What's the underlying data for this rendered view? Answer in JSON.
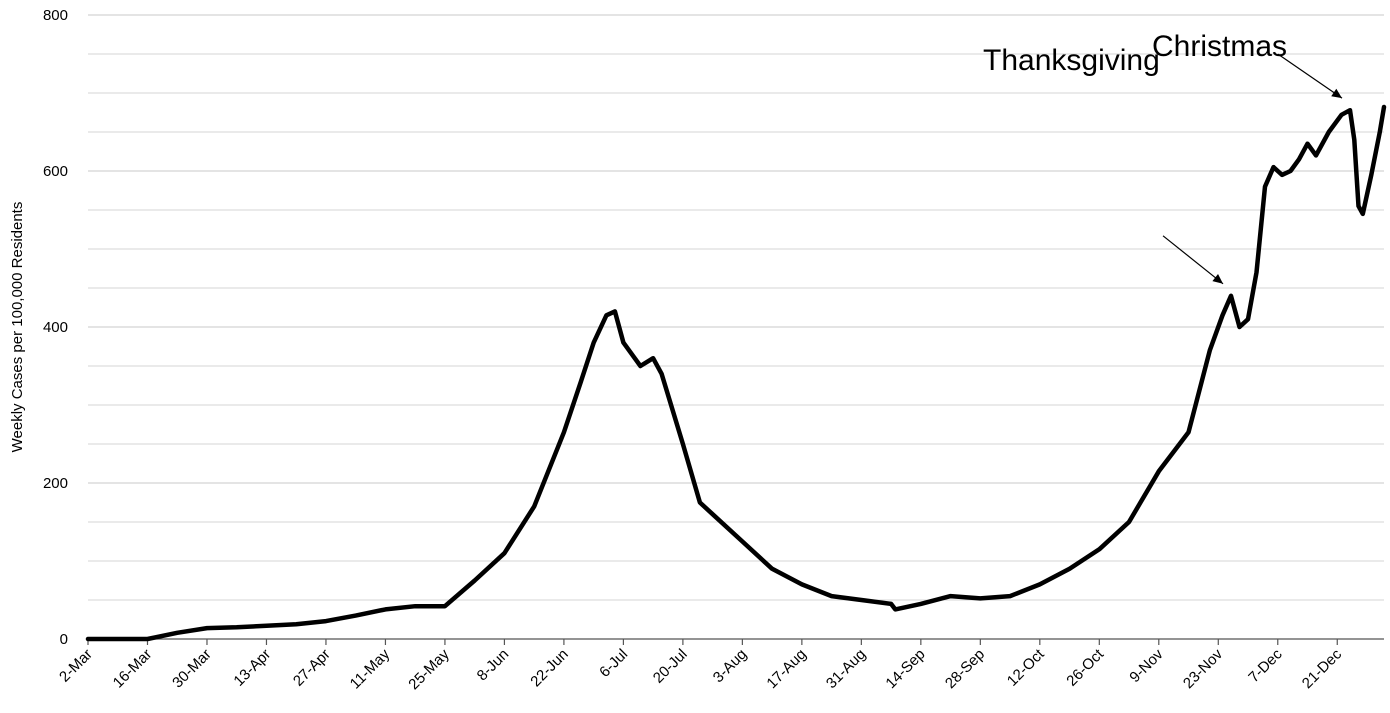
{
  "chart_data": {
    "type": "line",
    "title": "",
    "xlabel": "",
    "ylabel": "Weekly Cases per 100,000 Residents",
    "ylim": [
      0,
      800
    ],
    "y_ticks": [
      0,
      200,
      400,
      600,
      800
    ],
    "grid": true,
    "legend": "none",
    "x_ticks": [
      "2-Mar",
      "16-Mar",
      "30-Mar",
      "13-Apr",
      "27-Apr",
      "11-May",
      "25-May",
      "8-Jun",
      "22-Jun",
      "6-Jul",
      "20-Jul",
      "3-Aug",
      "17-Aug",
      "31-Aug",
      "14-Sep",
      "28-Sep",
      "12-Oct",
      "26-Oct",
      "9-Nov",
      "23-Nov",
      "7-Dec",
      "21-Dec"
    ],
    "series": [
      {
        "color": "#000000",
        "points": [
          [
            "2-Mar",
            0
          ],
          [
            "16-Mar",
            0
          ],
          [
            "23-Mar",
            8
          ],
          [
            "30-Mar",
            14
          ],
          [
            "6-Apr",
            15
          ],
          [
            "13-Apr",
            17
          ],
          [
            "20-Apr",
            19
          ],
          [
            "27-Apr",
            23
          ],
          [
            "4-May",
            30
          ],
          [
            "11-May",
            38
          ],
          [
            "18-May",
            42
          ],
          [
            "25-May",
            42
          ],
          [
            "1-Jun",
            75
          ],
          [
            "8-Jun",
            110
          ],
          [
            "15-Jun",
            170
          ],
          [
            "22-Jun",
            265
          ],
          [
            "26-Jun",
            330
          ],
          [
            "29-Jun",
            380
          ],
          [
            "2-Jul",
            415
          ],
          [
            "4-Jul",
            420
          ],
          [
            "6-Jul",
            380
          ],
          [
            "10-Jul",
            350
          ],
          [
            "13-Jul",
            360
          ],
          [
            "15-Jul",
            340
          ],
          [
            "20-Jul",
            250
          ],
          [
            "24-Jul",
            175
          ],
          [
            "27-Jul",
            160
          ],
          [
            "3-Aug",
            125
          ],
          [
            "10-Aug",
            90
          ],
          [
            "17-Aug",
            70
          ],
          [
            "24-Aug",
            55
          ],
          [
            "31-Aug",
            50
          ],
          [
            "7-Sep",
            45
          ],
          [
            "8-Sep",
            38
          ],
          [
            "14-Sep",
            45
          ],
          [
            "21-Sep",
            55
          ],
          [
            "28-Sep",
            52
          ],
          [
            "5-Oct",
            55
          ],
          [
            "12-Oct",
            70
          ],
          [
            "19-Oct",
            90
          ],
          [
            "26-Oct",
            115
          ],
          [
            "2-Nov",
            150
          ],
          [
            "9-Nov",
            215
          ],
          [
            "16-Nov",
            265
          ],
          [
            "21-Nov",
            370
          ],
          [
            "24-Nov",
            415
          ],
          [
            "26-Nov",
            440
          ],
          [
            "28-Nov",
            400
          ],
          [
            "30-Nov",
            410
          ],
          [
            "2-Dec",
            470
          ],
          [
            "4-Dec",
            580
          ],
          [
            "6-Dec",
            605
          ],
          [
            "8-Dec",
            595
          ],
          [
            "10-Dec",
            600
          ],
          [
            "12-Dec",
            615
          ],
          [
            "14-Dec",
            635
          ],
          [
            "16-Dec",
            620
          ],
          [
            "19-Dec",
            650
          ],
          [
            "22-Dec",
            672
          ],
          [
            "24-Dec",
            678
          ],
          [
            "25-Dec",
            640
          ],
          [
            "26-Dec",
            555
          ],
          [
            "27-Dec",
            545
          ],
          [
            "29-Dec",
            595
          ],
          [
            "31-Dec",
            650
          ],
          [
            "1-Jan",
            682
          ]
        ]
      }
    ],
    "annotations": [
      {
        "text": "Christmas",
        "date": "24-Dec",
        "value": 678
      },
      {
        "text": "Thanksgiving",
        "date": "26-Nov",
        "value": 440
      }
    ]
  }
}
